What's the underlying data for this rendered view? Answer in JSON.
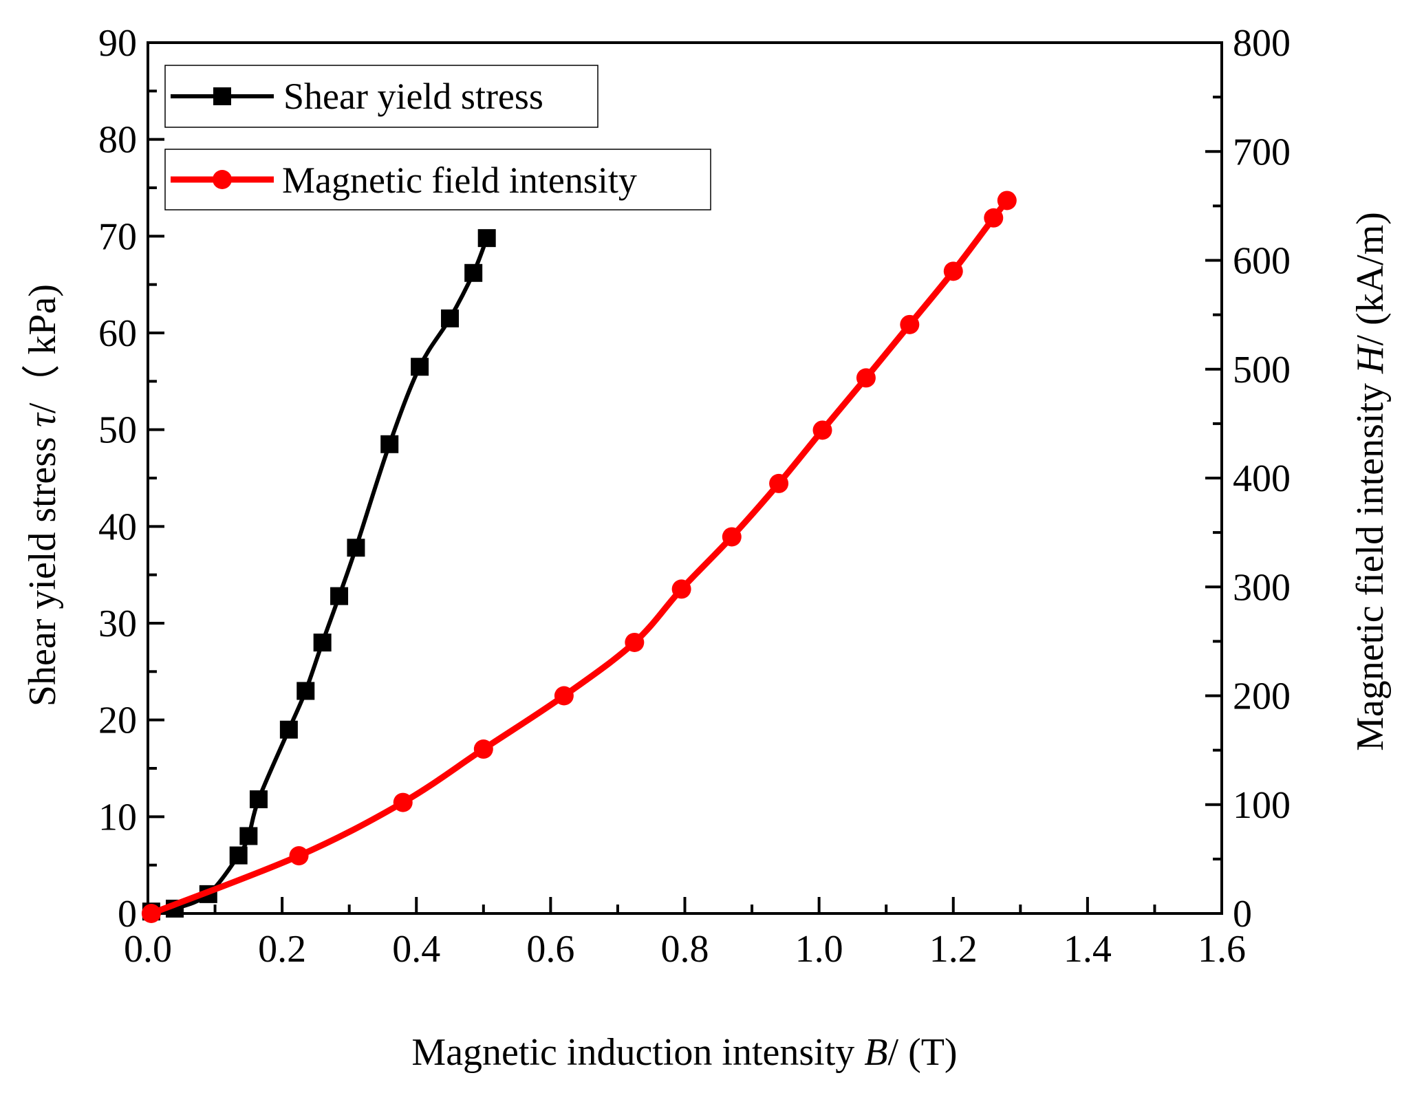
{
  "chart_data": {
    "type": "line",
    "title": "",
    "xlabel": {
      "prefix": "Magnetic induction intensity ",
      "symbol": "B",
      "suffix": "/ (T)"
    },
    "ylabel_left": {
      "prefix": "Shear yield stress ",
      "symbol": "τ",
      "suffix": "/（ kPa)"
    },
    "ylabel_right": {
      "prefix": "Magnetic field intensity ",
      "symbol": "H",
      "suffix": "/ (kA/m)"
    },
    "xlim": [
      0,
      1.6
    ],
    "ylim_left": [
      0,
      90
    ],
    "ylim_right": [
      0,
      800
    ],
    "x_ticks": [
      "0.0",
      "0.2",
      "0.4",
      "0.6",
      "0.8",
      "1.0",
      "1.2",
      "1.4",
      "1.6"
    ],
    "y_left_ticks": [
      "0",
      "10",
      "20",
      "30",
      "40",
      "50",
      "60",
      "70",
      "80",
      "90"
    ],
    "y_right_ticks": [
      "0",
      "100",
      "200",
      "300",
      "400",
      "500",
      "600",
      "700",
      "800"
    ],
    "grid": false,
    "legend_position": "top-left",
    "series": [
      {
        "name": "Shear yield stress",
        "axis": "left",
        "color": "#000000",
        "marker": "square",
        "x": [
          0.005,
          0.04,
          0.09,
          0.135,
          0.15,
          0.165,
          0.21,
          0.235,
          0.26,
          0.285,
          0.31,
          0.36,
          0.405,
          0.45,
          0.485,
          0.505
        ],
        "y": [
          0.2,
          0.5,
          2.0,
          6.0,
          8.0,
          11.8,
          19.0,
          23.0,
          28.0,
          32.8,
          37.8,
          48.5,
          56.5,
          61.5,
          66.2,
          69.8
        ]
      },
      {
        "name": "Magnetic field intensity",
        "axis": "right",
        "color": "#ff0000",
        "marker": "circle",
        "x": [
          0.005,
          0.225,
          0.38,
          0.5,
          0.62,
          0.725,
          0.795,
          0.87,
          0.94,
          1.005,
          1.07,
          1.135,
          1.2,
          1.26,
          1.28
        ],
        "y": [
          0,
          53,
          102,
          151,
          200,
          249,
          298,
          346,
          395,
          444,
          492,
          541,
          590,
          639,
          655
        ]
      }
    ]
  }
}
